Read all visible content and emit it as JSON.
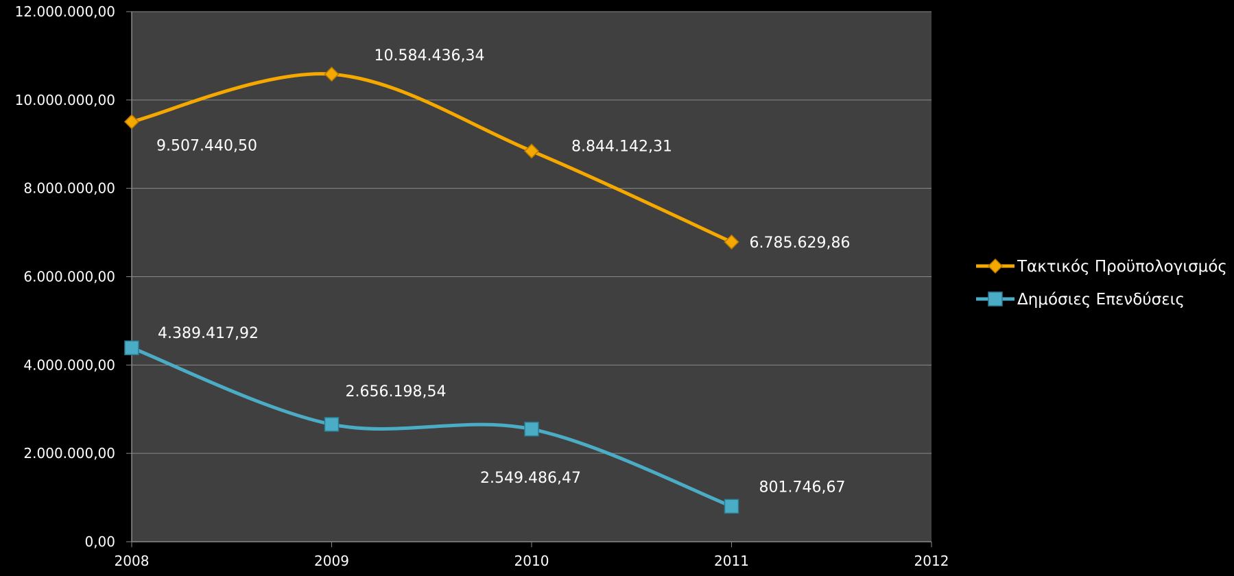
{
  "chart_data": {
    "type": "line",
    "smooth": true,
    "title": "",
    "xlabel": "",
    "ylabel": "",
    "x": [
      2008,
      2009,
      2010,
      2011
    ],
    "x_ticks": [
      "2008",
      "2009",
      "2010",
      "2011",
      "2012"
    ],
    "xlim": [
      2008,
      2012
    ],
    "ylim": [
      0,
      12000000
    ],
    "y_ticks": [
      0,
      2000000,
      4000000,
      6000000,
      8000000,
      10000000,
      12000000
    ],
    "y_tick_labels": [
      "0,00",
      "2.000.000,00",
      "4.000.000,00",
      "6.000.000,00",
      "8.000.000,00",
      "10.000.000,00",
      "12.000.000,00"
    ],
    "grid": true,
    "legend_position": "right",
    "series": [
      {
        "name": "Τακτικός Προϋπολογισμός",
        "marker": "diamond",
        "color": "#F5A800",
        "values": [
          9507440.5,
          10584436.34,
          8844142.31,
          6785629.86
        ],
        "labels": [
          "9.507.440,50",
          "10.584.436,34",
          "8.844.142,31",
          "6.785.629,86"
        ]
      },
      {
        "name": "Δημόσιες Επενδύσεις",
        "marker": "square",
        "color": "#4BACC6",
        "values": [
          4389417.92,
          2656198.54,
          2549486.47,
          801746.67
        ],
        "labels": [
          "4.389.417,92",
          "2.656.198,54",
          "2.549.486,47",
          "801.746,67"
        ]
      }
    ]
  }
}
